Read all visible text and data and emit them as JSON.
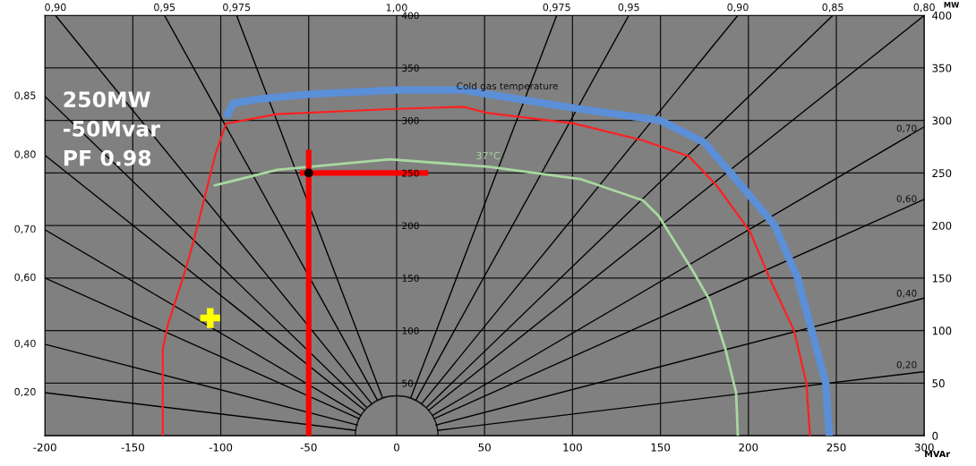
{
  "chart_data": {
    "type": "line",
    "xlabel": "MVAr",
    "ylabel": "MW",
    "grid": true,
    "xlim": [
      -200,
      300
    ],
    "xticks": [
      -200,
      -150,
      -100,
      -50,
      0,
      50,
      100,
      150,
      200,
      250,
      300
    ],
    "ylim": [
      0,
      400
    ],
    "yticks": [
      0,
      50,
      100,
      150,
      200,
      250,
      300,
      350,
      400
    ],
    "y3lim": [
      0,
      400
    ],
    "y3ticks": [
      50,
      100,
      150,
      200,
      250,
      300,
      350,
      400
    ],
    "annotations": [
      "250MW\n-50Mvar\nPF 0.98",
      "Cold gas temperature",
      "1,00",
      {
        "text": "0,70",
        "x": 290,
        "y": 284
      },
      {
        "text": "0,60",
        "x": 290,
        "y": 217
      },
      {
        "text": "0,40",
        "x": 290,
        "y": 127
      },
      {
        "text": "0,20",
        "x": 290,
        "y": 59
      },
      {
        "text": "0,90",
        "x": -194,
        "y": 400
      },
      {
        "text": "0,95",
        "x": -132,
        "y": 400
      },
      {
        "text": "0,975",
        "x": -91,
        "y": 400
      },
      {
        "text": "0,975",
        "x": 91,
        "y": 400
      },
      {
        "text": "0,95",
        "x": 132,
        "y": 400
      },
      {
        "text": "0,90",
        "x": 194,
        "y": 400
      },
      {
        "text": "0,85",
        "x": 248,
        "y": 400
      },
      {
        "text": "0,80",
        "x": 300,
        "y": 400
      },
      {
        "text": "0,85",
        "x": -200,
        "y": 323
      },
      {
        "text": "0,80",
        "x": -200,
        "y": 267
      },
      {
        "text": "0,70",
        "x": -200,
        "y": 196
      },
      {
        "text": "0,60",
        "x": -200,
        "y": 150
      },
      {
        "text": "0,40",
        "x": -200,
        "y": 87
      },
      {
        "text": "0,20",
        "x": -200,
        "y": 41
      }
    ],
    "series": [
      {
        "color": "#000000",
        "x": [
          -23,
          -200
        ],
        "values": [
          5,
          41
        ]
      },
      {
        "color": "#000000",
        "x": [
          -22,
          -200
        ],
        "values": [
          10,
          87
        ]
      },
      {
        "color": "#000000",
        "x": [
          -21,
          -200
        ],
        "values": [
          16,
          150
        ]
      },
      {
        "color": "#000000",
        "x": [
          -20,
          -200
        ],
        "values": [
          19,
          196
        ]
      },
      {
        "color": "#000000",
        "x": [
          -18,
          -200
        ],
        "values": [
          24,
          267
        ]
      },
      {
        "color": "#000000",
        "x": [
          -17,
          -200
        ],
        "values": [
          27,
          323
        ]
      },
      {
        "color": "#000000",
        "x": [
          -14,
          -194
        ],
        "values": [
          30,
          400
        ]
      },
      {
        "color": "#000000",
        "x": [
          -11,
          -132
        ],
        "values": [
          34,
          400
        ]
      },
      {
        "color": "#000000",
        "x": [
          -8,
          -91
        ],
        "values": [
          36,
          400
        ]
      },
      {
        "color": "#000000",
        "x": [
          23,
          300
        ],
        "values": [
          5,
          61
        ]
      },
      {
        "color": "#000000",
        "x": [
          22,
          300
        ],
        "values": [
          10,
          131
        ]
      },
      {
        "color": "#000000",
        "x": [
          21,
          300
        ],
        "values": [
          16,
          225
        ]
      },
      {
        "color": "#000000",
        "x": [
          20,
          300
        ],
        "values": [
          19,
          294
        ]
      },
      {
        "color": "#000000",
        "x": [
          18,
          300
        ],
        "values": [
          24,
          400
        ]
      },
      {
        "color": "#000000",
        "x": [
          17,
          248
        ],
        "values": [
          27,
          400
        ]
      },
      {
        "color": "#000000",
        "x": [
          14,
          194
        ],
        "values": [
          30,
          400
        ]
      },
      {
        "color": "#000000",
        "x": [
          11,
          132
        ],
        "values": [
          34,
          400
        ]
      },
      {
        "color": "#000000",
        "x": [
          8,
          91
        ],
        "values": [
          36,
          400
        ]
      },
      {
        "color": "#5b8fd8",
        "x": [
          -97,
          -93,
          -80,
          -50,
          0,
          38,
          52,
          104,
          150,
          175,
          190,
          215,
          228,
          236,
          244,
          246
        ],
        "values": [
          303,
          316,
          320,
          325,
          329,
          329,
          325,
          311,
          300,
          279,
          250,
          200,
          150,
          100,
          50,
          0
        ]
      },
      {
        "color": "#ff2020",
        "x": [
          -133,
          -133,
          -130,
          -120,
          -115,
          -103,
          -97,
          -68,
          -1,
          38,
          52,
          101,
          140,
          166,
          182,
          201,
          212,
          226,
          233,
          235
        ],
        "values": [
          0,
          82,
          106,
          158,
          188,
          268,
          297,
          306,
          311,
          313,
          307,
          297,
          281,
          266,
          238,
          194,
          150,
          100,
          50,
          0
        ]
      },
      {
        "name": "37°C",
        "color": "#a8d8a0",
        "x": [
          -104,
          -68,
          -4,
          52,
          105,
          140,
          149,
          168,
          178,
          187,
          193,
          194
        ],
        "values": [
          238,
          253,
          263,
          256,
          244,
          224,
          209,
          158,
          129,
          82,
          41,
          0
        ]
      },
      {
        "color": "#ff0000",
        "x": [
          -50,
          -50
        ],
        "values": [
          0,
          272
        ]
      },
      {
        "color": "#ff0000",
        "x": [
          -55,
          18
        ],
        "values": [
          250,
          250
        ]
      },
      {
        "type": "scatter",
        "marker": "circle",
        "color": "#000000",
        "x": [
          -50
        ],
        "values": [
          250
        ]
      },
      {
        "type": "scatter",
        "marker": "cross",
        "color": "#ffff00",
        "x": [
          -106
        ],
        "values": [
          112
        ]
      }
    ]
  }
}
